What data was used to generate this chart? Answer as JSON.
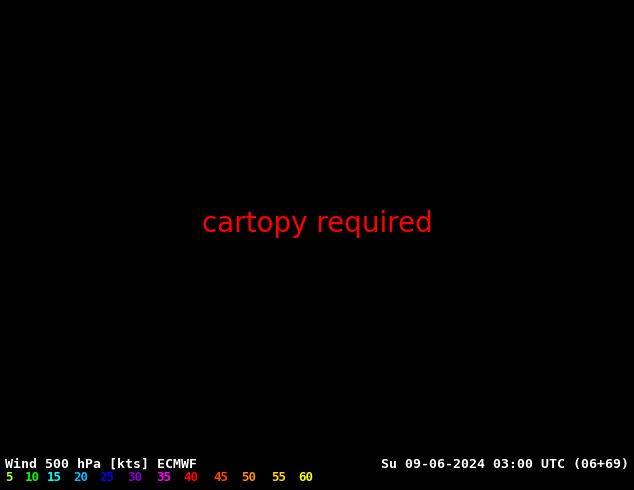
{
  "title_left": "Wind 500 hPa [kts] ECMWF",
  "title_right": "Su 09-06-2024 03:00 UTC (06+69)",
  "legend_values": [
    "5",
    "10",
    "15",
    "20",
    "25",
    "30",
    "35",
    "40",
    "45",
    "50",
    "55",
    "60"
  ],
  "legend_colors": [
    "#adff2f",
    "#00ff00",
    "#00ffff",
    "#00bfff",
    "#0000ff",
    "#8a00d4",
    "#ff00ff",
    "#ff0000",
    "#ff4500",
    "#ff8c00",
    "#ffd700",
    "#ffff00"
  ],
  "bg_color": "#000000",
  "text_color": "#ffffff",
  "font_size_title": 9.5,
  "font_size_legend": 9,
  "figure_width": 6.34,
  "figure_height": 4.9,
  "dpi": 100,
  "map_extent": [
    -135,
    -60,
    20,
    65
  ],
  "speed_thresholds": [
    5,
    10,
    15,
    20,
    25,
    30,
    35,
    40,
    45,
    50,
    55,
    60
  ],
  "land_color": "#c8e6a0",
  "ocean_color": "#e8e8e8",
  "mountain_color": "#b0b090",
  "snow_color": "#f0f0f0"
}
